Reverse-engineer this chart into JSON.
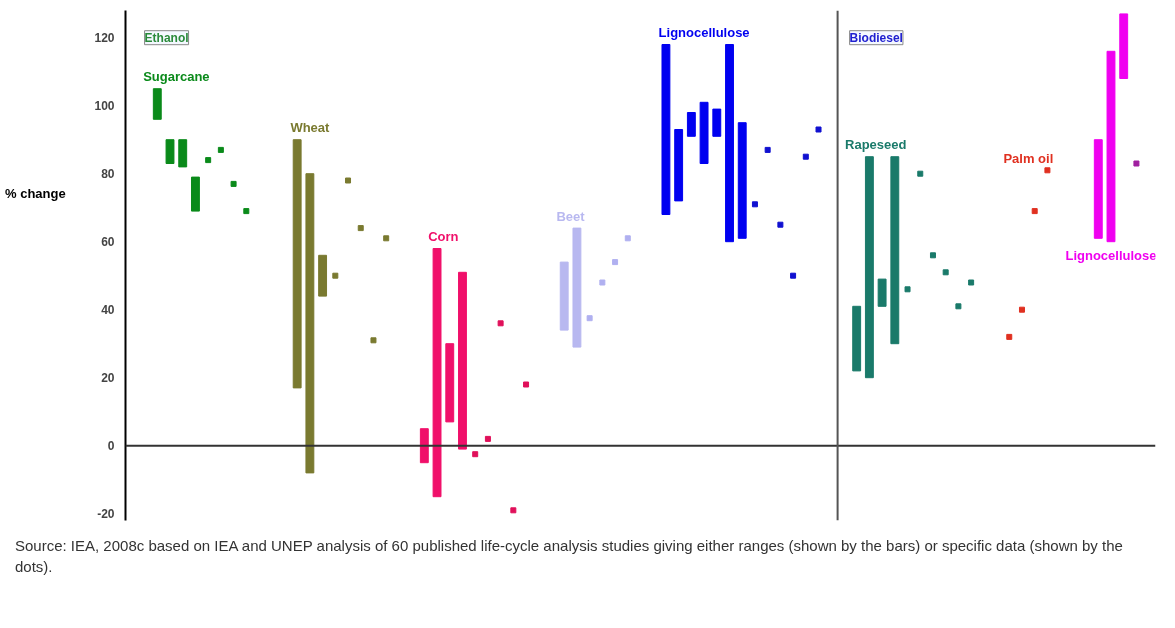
{
  "chart_data": {
    "type": "bar",
    "ylabel": "% change",
    "categories": [
      null,
      null,
      null,
      null,
      null,
      null,
      null,
      null,
      null,
      null,
      null,
      null,
      null,
      null,
      null,
      null,
      null,
      null,
      null,
      null,
      null,
      null,
      null,
      null,
      null,
      null,
      null,
      null,
      null,
      null,
      null,
      null,
      null,
      null,
      null,
      null,
      null,
      null,
      null,
      null,
      null,
      null,
      null,
      null,
      null,
      null,
      null,
      null,
      null,
      null,
      null,
      null,
      null,
      null,
      null,
      null,
      null,
      null,
      null,
      null,
      null,
      null,
      null,
      null,
      null,
      null,
      null,
      null,
      null,
      null,
      null,
      null,
      null,
      null,
      null,
      null,
      null,
      null,
      null,
      null,
      null
    ],
    "ylim": [
      -22,
      128
    ],
    "yticks": [
      -20,
      0,
      20,
      40,
      60,
      80,
      100,
      120
    ],
    "tick_labels": "y",
    "grid": false,
    "marker": "square",
    "series": [
      {
        "name": "Sugarcane",
        "color": "#0a8a1a",
        "base": [
          null,
          null,
          96,
          83,
          82,
          69,
          null,
          null,
          null,
          null,
          null,
          null,
          null,
          null,
          null,
          null,
          null,
          null,
          null,
          null,
          null,
          null,
          null,
          null,
          null,
          null,
          null,
          null,
          null,
          null,
          null,
          null,
          null,
          null,
          null,
          null,
          null,
          null,
          null,
          null,
          null,
          null,
          null,
          null,
          null,
          null,
          null,
          null,
          null,
          null,
          null,
          null,
          null,
          null,
          null,
          null,
          null,
          null,
          null,
          null,
          null,
          null,
          null,
          null,
          null,
          null,
          null,
          null,
          null,
          null,
          null,
          null,
          null,
          null,
          null,
          null,
          null,
          null,
          null,
          null,
          null
        ],
        "values": [
          null,
          null,
          9,
          7,
          8,
          10,
          null,
          null,
          null,
          null,
          null,
          null,
          null,
          null,
          null,
          null,
          null,
          null,
          null,
          null,
          null,
          null,
          null,
          null,
          null,
          null,
          null,
          null,
          null,
          null,
          null,
          null,
          null,
          null,
          null,
          null,
          null,
          null,
          null,
          null,
          null,
          null,
          null,
          null,
          null,
          null,
          null,
          null,
          null,
          null,
          null,
          null,
          null,
          null,
          null,
          null,
          null,
          null,
          null,
          null,
          null,
          null,
          null,
          null,
          null,
          null,
          null,
          null,
          null,
          null,
          null,
          null,
          null,
          null,
          null,
          null,
          null,
          null,
          null,
          null,
          null
        ]
      },
      {
        "type": "scatter",
        "color": "#0a8a1a",
        "values": [
          null,
          null,
          null,
          null,
          null,
          null,
          84,
          87,
          77,
          69,
          null,
          null,
          null,
          null,
          null,
          null,
          null,
          null,
          null,
          null,
          null,
          null,
          null,
          null,
          null,
          null,
          null,
          null,
          null,
          null,
          null,
          null,
          null,
          null,
          null,
          null,
          null,
          null,
          null,
          null,
          null,
          null,
          null,
          null,
          null,
          null,
          null,
          null,
          null,
          null,
          null,
          null,
          null,
          null,
          null,
          null,
          null,
          null,
          null,
          null,
          null,
          null,
          null,
          null,
          null,
          null,
          null,
          null,
          null,
          null,
          null,
          null,
          null,
          null,
          null,
          null,
          null,
          null,
          null,
          null,
          null
        ]
      },
      {
        "name": "Wheat",
        "color": "#7a7a30",
        "base": [
          null,
          null,
          null,
          null,
          null,
          null,
          null,
          null,
          null,
          null,
          null,
          null,
          null,
          17,
          -8,
          44,
          null,
          null,
          null,
          null,
          null,
          null,
          null,
          null,
          null,
          null,
          null,
          null,
          null,
          null,
          null,
          null,
          null,
          null,
          null,
          null,
          null,
          null,
          null,
          null,
          null,
          null,
          null,
          null,
          null,
          null,
          null,
          null,
          null,
          null,
          null,
          null,
          null,
          null,
          null,
          null,
          null,
          null,
          null,
          null,
          null,
          null,
          null,
          null,
          null,
          null,
          null,
          null,
          null,
          null,
          null,
          null,
          null,
          null,
          null,
          null,
          null,
          null,
          null,
          null,
          null
        ],
        "values": [
          null,
          null,
          null,
          null,
          null,
          null,
          null,
          null,
          null,
          null,
          null,
          null,
          null,
          73,
          88,
          12,
          null,
          null,
          null,
          null,
          null,
          null,
          null,
          null,
          null,
          null,
          null,
          null,
          null,
          null,
          null,
          null,
          null,
          null,
          null,
          null,
          null,
          null,
          null,
          null,
          null,
          null,
          null,
          null,
          null,
          null,
          null,
          null,
          null,
          null,
          null,
          null,
          null,
          null,
          null,
          null,
          null,
          null,
          null,
          null,
          null,
          null,
          null,
          null,
          null,
          null,
          null,
          null,
          null,
          null,
          null,
          null,
          null,
          null,
          null,
          null,
          null,
          null,
          null,
          null,
          null
        ]
      },
      {
        "type": "scatter",
        "color": "#7a7a30",
        "values": [
          null,
          null,
          null,
          null,
          null,
          null,
          null,
          null,
          null,
          null,
          null,
          null,
          null,
          null,
          null,
          null,
          50,
          78,
          64,
          31,
          61,
          null,
          null,
          null,
          null,
          null,
          null,
          null,
          null,
          null,
          null,
          null,
          null,
          null,
          null,
          null,
          null,
          null,
          null,
          null,
          null,
          null,
          null,
          null,
          null,
          null,
          null,
          null,
          null,
          null,
          null,
          null,
          null,
          null,
          null,
          null,
          null,
          null,
          null,
          null,
          null,
          null,
          null,
          null,
          null,
          null,
          null,
          null,
          null,
          null,
          null,
          null,
          null,
          null,
          null,
          null,
          null,
          null,
          null,
          null,
          null
        ]
      },
      {
        "name": "Corn",
        "color": "#f0106a",
        "base": [
          null,
          null,
          null,
          null,
          null,
          null,
          null,
          null,
          null,
          null,
          null,
          null,
          null,
          null,
          null,
          null,
          null,
          null,
          null,
          null,
          null,
          null,
          null,
          -5,
          -15,
          7,
          -1,
          null,
          null,
          null,
          null,
          null,
          null,
          null,
          null,
          null,
          null,
          null,
          null,
          null,
          null,
          null,
          null,
          null,
          null,
          null,
          null,
          null,
          null,
          null,
          null,
          null,
          null,
          null,
          null,
          null,
          null,
          null,
          null,
          null,
          null,
          null,
          null,
          null,
          null,
          null,
          null,
          null,
          null,
          null,
          null,
          null,
          null,
          null,
          null,
          null,
          null,
          null,
          null,
          null,
          null
        ],
        "values": [
          null,
          null,
          null,
          null,
          null,
          null,
          null,
          null,
          null,
          null,
          null,
          null,
          null,
          null,
          null,
          null,
          null,
          null,
          null,
          null,
          null,
          null,
          null,
          10,
          73,
          23,
          52,
          null,
          null,
          null,
          null,
          null,
          null,
          null,
          null,
          null,
          null,
          null,
          null,
          null,
          null,
          null,
          null,
          null,
          null,
          null,
          null,
          null,
          null,
          null,
          null,
          null,
          null,
          null,
          null,
          null,
          null,
          null,
          null,
          null,
          null,
          null,
          null,
          null,
          null,
          null,
          null,
          null,
          null,
          null,
          null,
          null,
          null,
          null,
          null,
          null,
          null,
          null,
          null,
          null,
          null
        ]
      },
      {
        "type": "scatter",
        "color": "#e0105a",
        "values": [
          null,
          null,
          null,
          null,
          null,
          null,
          null,
          null,
          null,
          null,
          null,
          null,
          null,
          null,
          null,
          null,
          null,
          null,
          null,
          null,
          null,
          null,
          null,
          null,
          null,
          null,
          null,
          -2.5,
          2,
          36,
          -19,
          18,
          null,
          null,
          null,
          null,
          null,
          null,
          null,
          null,
          null,
          null,
          null,
          null,
          null,
          null,
          null,
          null,
          null,
          null,
          null,
          null,
          null,
          null,
          null,
          null,
          null,
          null,
          null,
          null,
          null,
          null,
          null,
          null,
          null,
          null,
          null,
          null,
          null,
          null,
          null,
          null,
          null,
          null,
          null,
          null,
          null,
          null,
          null,
          null,
          null
        ]
      },
      {
        "name": "Beet",
        "color": "#b8b8f0",
        "base": [
          null,
          null,
          null,
          null,
          null,
          null,
          null,
          null,
          null,
          null,
          null,
          null,
          null,
          null,
          null,
          null,
          null,
          null,
          null,
          null,
          null,
          null,
          null,
          null,
          null,
          null,
          null,
          null,
          null,
          null,
          null,
          null,
          null,
          null,
          34,
          29,
          null,
          null,
          null,
          null,
          null,
          null,
          null,
          null,
          null,
          null,
          null,
          null,
          null,
          null,
          null,
          null,
          null,
          null,
          null,
          null,
          null,
          null,
          null,
          null,
          null,
          null,
          null,
          null,
          null,
          null,
          null,
          null,
          null,
          null,
          null,
          null,
          null,
          null,
          null,
          null,
          null,
          null,
          null,
          null,
          null
        ],
        "values": [
          null,
          null,
          null,
          null,
          null,
          null,
          null,
          null,
          null,
          null,
          null,
          null,
          null,
          null,
          null,
          null,
          null,
          null,
          null,
          null,
          null,
          null,
          null,
          null,
          null,
          null,
          null,
          null,
          null,
          null,
          null,
          null,
          null,
          null,
          20,
          35,
          null,
          null,
          null,
          null,
          null,
          null,
          null,
          null,
          null,
          null,
          null,
          null,
          null,
          null,
          null,
          null,
          null,
          null,
          null,
          null,
          null,
          null,
          null,
          null,
          null,
          null,
          null,
          null,
          null,
          null,
          null,
          null,
          null,
          null,
          null,
          null,
          null,
          null,
          null,
          null,
          null,
          null,
          null,
          null,
          null
        ]
      },
      {
        "type": "scatter",
        "color": "#b0b0f0",
        "values": [
          null,
          null,
          null,
          null,
          null,
          null,
          null,
          null,
          null,
          null,
          null,
          null,
          null,
          null,
          null,
          null,
          null,
          null,
          null,
          null,
          null,
          null,
          null,
          null,
          null,
          null,
          null,
          null,
          null,
          null,
          null,
          null,
          null,
          null,
          null,
          null,
          37.5,
          48,
          54,
          61,
          null,
          null,
          null,
          null,
          null,
          null,
          null,
          null,
          null,
          null,
          null,
          null,
          null,
          null,
          null,
          null,
          null,
          null,
          null,
          null,
          null,
          null,
          null,
          null,
          null,
          null,
          null,
          null,
          null,
          null,
          null,
          null,
          null,
          null,
          null,
          null,
          null,
          null,
          null,
          null,
          null
        ]
      },
      {
        "name": "Lignocellulose",
        "color": "#0000f0",
        "base": [
          null,
          null,
          null,
          null,
          null,
          null,
          null,
          null,
          null,
          null,
          null,
          null,
          null,
          null,
          null,
          null,
          null,
          null,
          null,
          null,
          null,
          null,
          null,
          null,
          null,
          null,
          null,
          null,
          null,
          null,
          null,
          null,
          null,
          null,
          null,
          null,
          null,
          null,
          null,
          null,
          null,
          null,
          68,
          72,
          91,
          83,
          91,
          60,
          61,
          null,
          null,
          null,
          null,
          null,
          null,
          null,
          null,
          null,
          null,
          null,
          null,
          null,
          null,
          null,
          null,
          null,
          null,
          null,
          null,
          null,
          null,
          null,
          null,
          null,
          null,
          null,
          null,
          null,
          null,
          null,
          null
        ],
        "values": [
          null,
          null,
          null,
          null,
          null,
          null,
          null,
          null,
          null,
          null,
          null,
          null,
          null,
          null,
          null,
          null,
          null,
          null,
          null,
          null,
          null,
          null,
          null,
          null,
          null,
          null,
          null,
          null,
          null,
          null,
          null,
          null,
          null,
          null,
          null,
          null,
          null,
          null,
          null,
          null,
          null,
          null,
          50,
          21,
          7,
          18,
          8,
          58,
          34,
          null,
          null,
          null,
          null,
          null,
          null,
          null,
          null,
          null,
          null,
          null,
          null,
          null,
          null,
          null,
          null,
          null,
          null,
          null,
          null,
          null,
          null,
          null,
          null,
          null,
          null,
          null,
          null,
          null,
          null,
          null,
          null
        ]
      },
      {
        "type": "scatter",
        "color": "#1010d0",
        "values": [
          null,
          null,
          null,
          null,
          null,
          null,
          null,
          null,
          null,
          null,
          null,
          null,
          null,
          null,
          null,
          null,
          null,
          null,
          null,
          null,
          null,
          null,
          null,
          null,
          null,
          null,
          null,
          null,
          null,
          null,
          null,
          null,
          null,
          null,
          null,
          null,
          null,
          null,
          null,
          null,
          null,
          null,
          null,
          null,
          null,
          null,
          null,
          null,
          null,
          71,
          87,
          65,
          50,
          85,
          93,
          null,
          null,
          null,
          null,
          null,
          null,
          null,
          null,
          null,
          null,
          null,
          null,
          null,
          null,
          null,
          null,
          null,
          null,
          null,
          null,
          null,
          null,
          null,
          null,
          null,
          null
        ]
      },
      {
        "name": "Rapeseed",
        "color": "#1a7a6a",
        "base": [
          null,
          null,
          null,
          null,
          null,
          null,
          null,
          null,
          null,
          null,
          null,
          null,
          null,
          null,
          null,
          null,
          null,
          null,
          null,
          null,
          null,
          null,
          null,
          null,
          null,
          null,
          null,
          null,
          null,
          null,
          null,
          null,
          null,
          null,
          null,
          null,
          null,
          null,
          null,
          null,
          null,
          null,
          null,
          null,
          null,
          null,
          null,
          null,
          null,
          null,
          null,
          null,
          null,
          null,
          null,
          null,
          null,
          22,
          20,
          41,
          30,
          null,
          null,
          null,
          null,
          null,
          null,
          null,
          null,
          null,
          null,
          null,
          null,
          null,
          null,
          null,
          null,
          null,
          null,
          null,
          null
        ],
        "values": [
          null,
          null,
          null,
          null,
          null,
          null,
          null,
          null,
          null,
          null,
          null,
          null,
          null,
          null,
          null,
          null,
          null,
          null,
          null,
          null,
          null,
          null,
          null,
          null,
          null,
          null,
          null,
          null,
          null,
          null,
          null,
          null,
          null,
          null,
          null,
          null,
          null,
          null,
          null,
          null,
          null,
          null,
          null,
          null,
          null,
          null,
          null,
          null,
          null,
          null,
          null,
          null,
          null,
          null,
          null,
          null,
          null,
          19,
          65,
          8,
          55,
          null,
          null,
          null,
          null,
          null,
          null,
          null,
          null,
          null,
          null,
          null,
          null,
          null,
          null,
          null,
          null,
          null,
          null,
          null,
          null
        ]
      },
      {
        "type": "scatter",
        "color": "#1a7a6a",
        "values": [
          null,
          null,
          null,
          null,
          null,
          null,
          null,
          null,
          null,
          null,
          null,
          null,
          null,
          null,
          null,
          null,
          null,
          null,
          null,
          null,
          null,
          null,
          null,
          null,
          null,
          null,
          null,
          null,
          null,
          null,
          null,
          null,
          null,
          null,
          null,
          null,
          null,
          null,
          null,
          null,
          null,
          null,
          null,
          null,
          null,
          null,
          null,
          null,
          null,
          null,
          null,
          null,
          null,
          null,
          null,
          null,
          null,
          null,
          null,
          null,
          null,
          46,
          80,
          56,
          51,
          41,
          48,
          null,
          null,
          null,
          null,
          null,
          null,
          null,
          null,
          null,
          null,
          null,
          null,
          null,
          null
        ]
      },
      {
        "type": "scatter",
        "name": "Palm oil",
        "color": "#e03020",
        "values": [
          null,
          null,
          null,
          null,
          null,
          null,
          null,
          null,
          null,
          null,
          null,
          null,
          null,
          null,
          null,
          null,
          null,
          null,
          null,
          null,
          null,
          null,
          null,
          null,
          null,
          null,
          null,
          null,
          null,
          null,
          null,
          null,
          null,
          null,
          null,
          null,
          null,
          null,
          null,
          null,
          null,
          null,
          null,
          null,
          null,
          null,
          null,
          null,
          null,
          null,
          null,
          null,
          null,
          null,
          null,
          null,
          null,
          null,
          null,
          null,
          null,
          null,
          null,
          null,
          null,
          null,
          null,
          null,
          null,
          32,
          40,
          69,
          81,
          null,
          null,
          null,
          null,
          null,
          null,
          null,
          null
        ]
      },
      {
        "name": "Lignocellulose",
        "color": "#f000f0",
        "base": [
          null,
          null,
          null,
          null,
          null,
          null,
          null,
          null,
          null,
          null,
          null,
          null,
          null,
          null,
          null,
          null,
          null,
          null,
          null,
          null,
          null,
          null,
          null,
          null,
          null,
          null,
          null,
          null,
          null,
          null,
          null,
          null,
          null,
          null,
          null,
          null,
          null,
          null,
          null,
          null,
          null,
          null,
          null,
          null,
          null,
          null,
          null,
          null,
          null,
          null,
          null,
          null,
          null,
          null,
          null,
          null,
          null,
          null,
          null,
          null,
          null,
          null,
          null,
          null,
          null,
          null,
          null,
          null,
          null,
          null,
          null,
          null,
          null,
          null,
          null,
          null,
          61,
          60,
          108,
          null,
          null
        ],
        "values": [
          null,
          null,
          null,
          null,
          null,
          null,
          null,
          null,
          null,
          null,
          null,
          null,
          null,
          null,
          null,
          null,
          null,
          null,
          null,
          null,
          null,
          null,
          null,
          null,
          null,
          null,
          null,
          null,
          null,
          null,
          null,
          null,
          null,
          null,
          null,
          null,
          null,
          null,
          null,
          null,
          null,
          null,
          null,
          null,
          null,
          null,
          null,
          null,
          null,
          null,
          null,
          null,
          null,
          null,
          null,
          null,
          null,
          null,
          null,
          null,
          null,
          null,
          null,
          null,
          null,
          null,
          null,
          null,
          null,
          null,
          null,
          null,
          null,
          null,
          null,
          null,
          29,
          56,
          19,
          null,
          null
        ]
      },
      {
        "type": "scatter",
        "color": "#a020a0",
        "values": [
          null,
          null,
          null,
          null,
          null,
          null,
          null,
          null,
          null,
          null,
          null,
          null,
          null,
          null,
          null,
          null,
          null,
          null,
          null,
          null,
          null,
          null,
          null,
          null,
          null,
          null,
          null,
          null,
          null,
          null,
          null,
          null,
          null,
          null,
          null,
          null,
          null,
          null,
          null,
          null,
          null,
          null,
          null,
          null,
          null,
          null,
          null,
          null,
          null,
          null,
          null,
          null,
          null,
          null,
          null,
          null,
          null,
          null,
          null,
          null,
          null,
          null,
          null,
          null,
          null,
          null,
          null,
          null,
          null,
          null,
          null,
          null,
          null,
          null,
          null,
          null,
          null,
          null,
          null,
          83,
          null
        ]
      }
    ],
    "ref_lines": [
      {
        "axis": "y",
        "value": 0,
        "color": "#333333"
      }
    ],
    "annotations": [
      "Ethanol",
      "Biodiesel",
      "Source: IEA, 2008c based on IEA and UNEP analysis of 60 published life-cycle analysis studies giving either ranges (shown by the bars) or specific data (shown by the dots)."
    ]
  }
}
